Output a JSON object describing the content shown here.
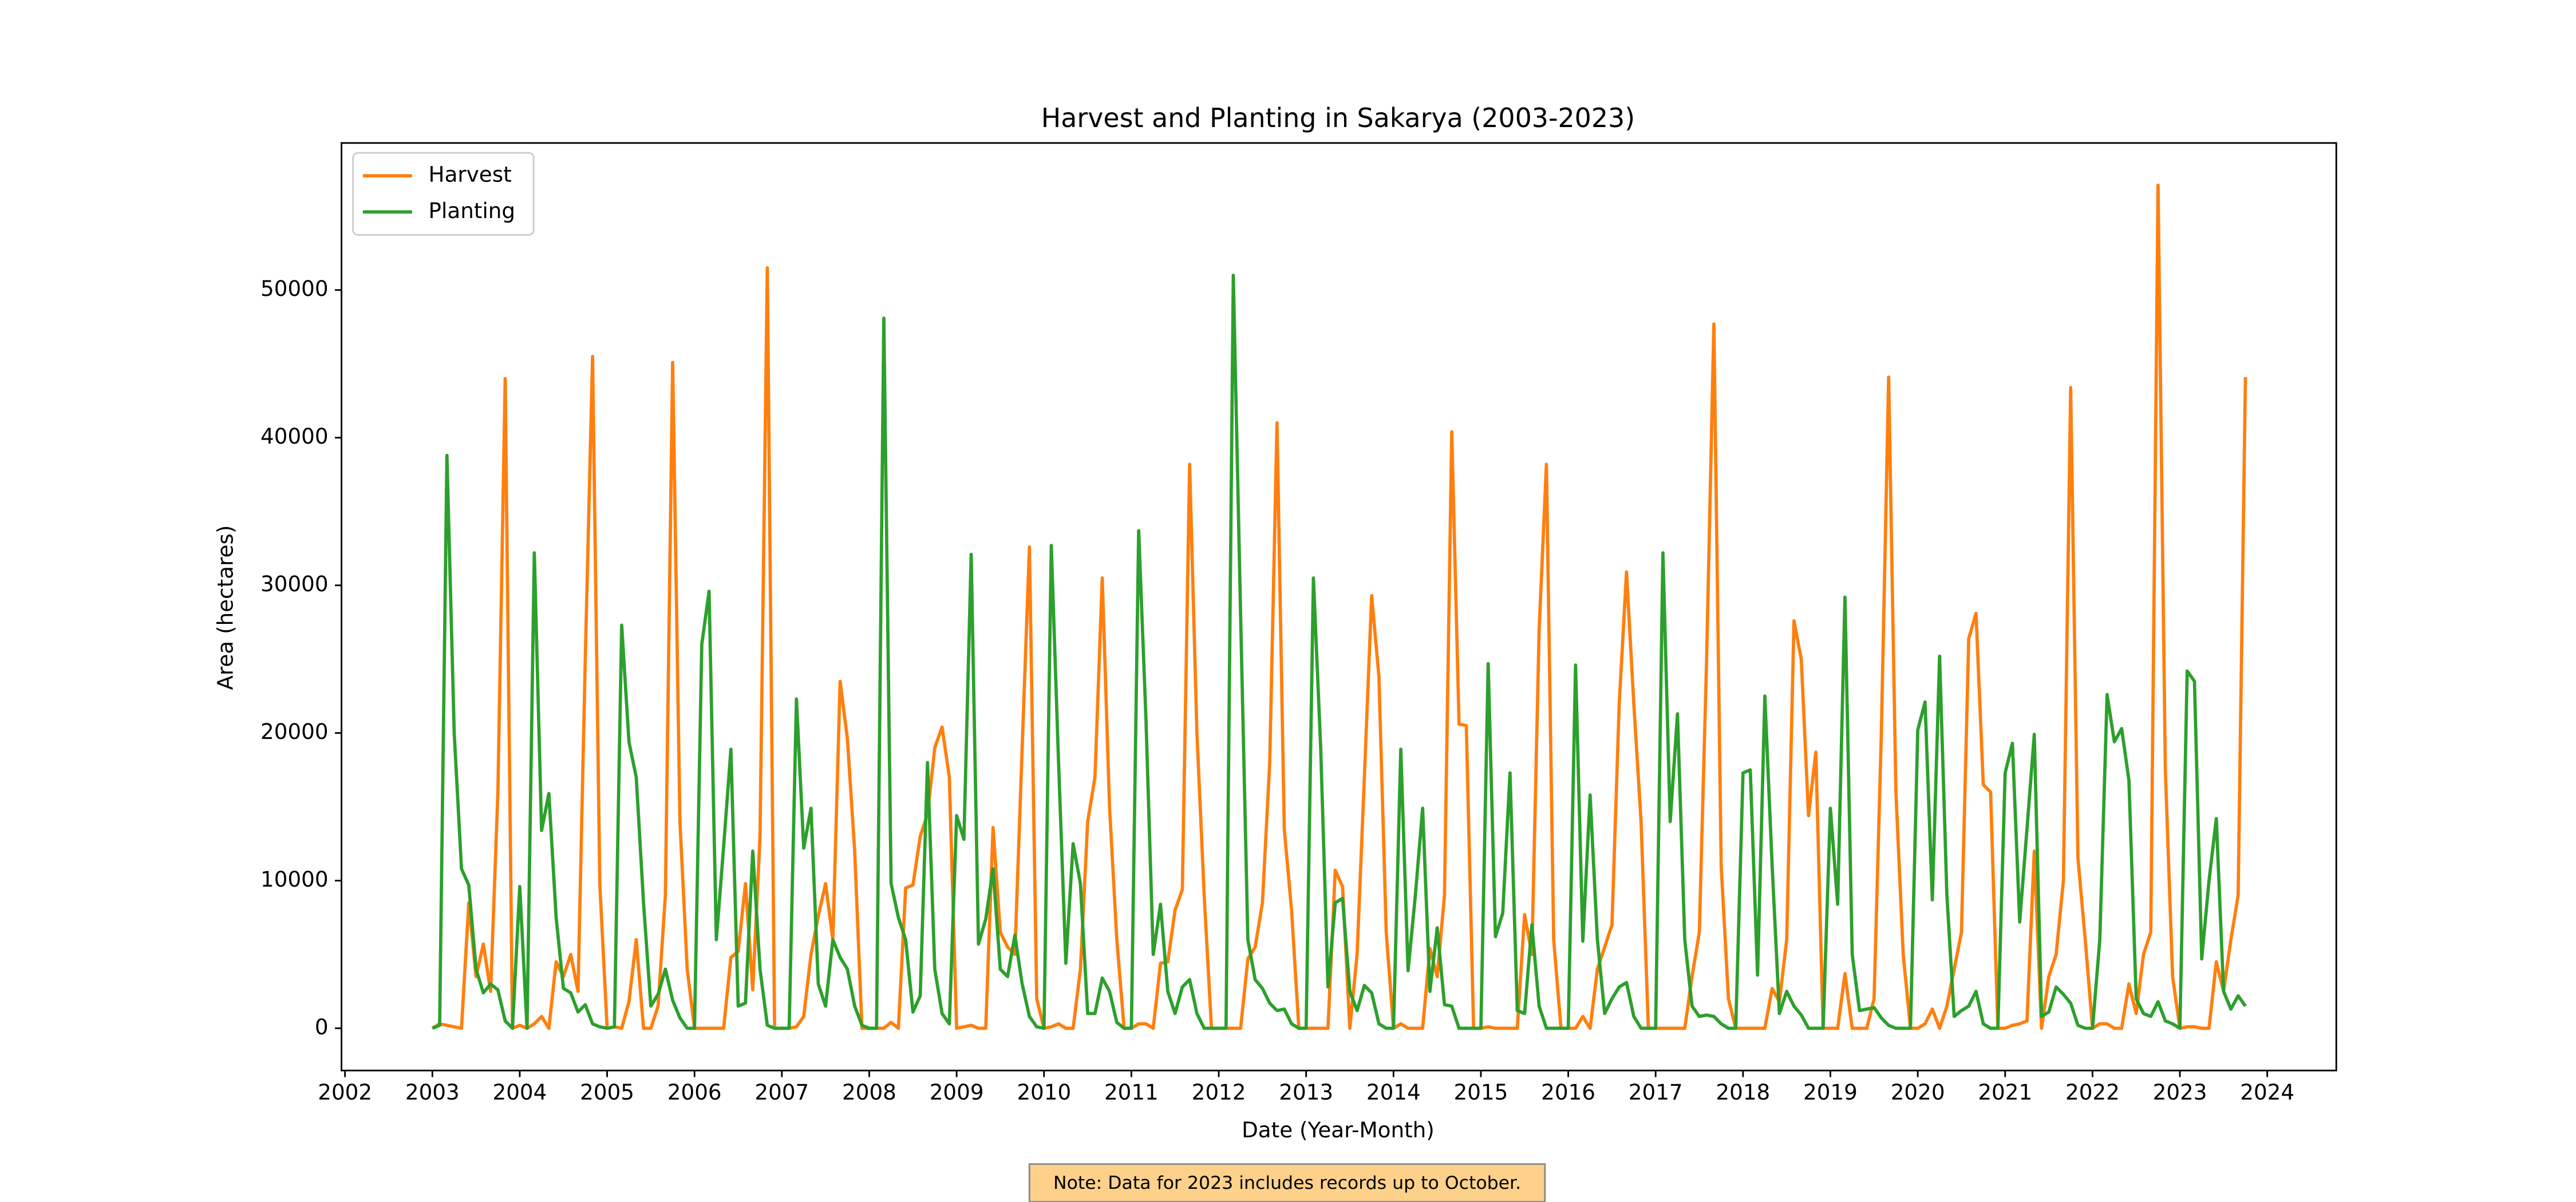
{
  "chart_data": {
    "type": "line",
    "title": "Harvest and Planting in Sakarya (2003-2023)",
    "x_label": "Date (Year-Month)",
    "y_label": "Area (hectares)",
    "note": "Note: Data for 2023 includes records up to October.",
    "legend": "upper left",
    "grid": false,
    "x": [
      "2003-01",
      "2003-02",
      "2003-03",
      "2003-04",
      "2003-05",
      "2003-06",
      "2003-07",
      "2003-08",
      "2003-09",
      "2003-10",
      "2003-11",
      "2003-12",
      "2004-01",
      "2004-02",
      "2004-03",
      "2004-04",
      "2004-05",
      "2004-06",
      "2004-07",
      "2004-08",
      "2004-09",
      "2004-10",
      "2004-11",
      "2004-12",
      "2005-01",
      "2005-02",
      "2005-03",
      "2005-04",
      "2005-05",
      "2005-06",
      "2005-07",
      "2005-08",
      "2005-09",
      "2005-10",
      "2005-11",
      "2005-12",
      "2006-01",
      "2006-02",
      "2006-03",
      "2006-04",
      "2006-05",
      "2006-06",
      "2006-07",
      "2006-08",
      "2006-09",
      "2006-10",
      "2006-11",
      "2006-12",
      "2007-01",
      "2007-02",
      "2007-03",
      "2007-04",
      "2007-05",
      "2007-06",
      "2007-07",
      "2007-08",
      "2007-09",
      "2007-10",
      "2007-11",
      "2007-12",
      "2008-01",
      "2008-02",
      "2008-03",
      "2008-04",
      "2008-05",
      "2008-06",
      "2008-07",
      "2008-08",
      "2008-09",
      "2008-10",
      "2008-11",
      "2008-12",
      "2009-01",
      "2009-02",
      "2009-03",
      "2009-04",
      "2009-05",
      "2009-06",
      "2009-07",
      "2009-08",
      "2009-09",
      "2009-10",
      "2009-11",
      "2009-12",
      "2010-01",
      "2010-02",
      "2010-03",
      "2010-04",
      "2010-05",
      "2010-06",
      "2010-07",
      "2010-08",
      "2010-09",
      "2010-10",
      "2010-11",
      "2010-12",
      "2011-01",
      "2011-02",
      "2011-03",
      "2011-04",
      "2011-05",
      "2011-06",
      "2011-07",
      "2011-08",
      "2011-09",
      "2011-10",
      "2011-11",
      "2011-12",
      "2012-01",
      "2012-02",
      "2012-03",
      "2012-04",
      "2012-05",
      "2012-06",
      "2012-07",
      "2012-08",
      "2012-09",
      "2012-10",
      "2012-11",
      "2012-12",
      "2013-01",
      "2013-02",
      "2013-03",
      "2013-04",
      "2013-05",
      "2013-06",
      "2013-07",
      "2013-08",
      "2013-09",
      "2013-10",
      "2013-11",
      "2013-12",
      "2014-01",
      "2014-02",
      "2014-03",
      "2014-04",
      "2014-05",
      "2014-06",
      "2014-07",
      "2014-08",
      "2014-09",
      "2014-10",
      "2014-11",
      "2014-12",
      "2015-01",
      "2015-02",
      "2015-03",
      "2015-04",
      "2015-05",
      "2015-06",
      "2015-07",
      "2015-08",
      "2015-09",
      "2015-10",
      "2015-11",
      "2015-12",
      "2016-01",
      "2016-02",
      "2016-03",
      "2016-04",
      "2016-05",
      "2016-06",
      "2016-07",
      "2016-08",
      "2016-09",
      "2016-10",
      "2016-11",
      "2016-12",
      "2017-01",
      "2017-02",
      "2017-03",
      "2017-04",
      "2017-05",
      "2017-06",
      "2017-07",
      "2017-08",
      "2017-09",
      "2017-10",
      "2017-11",
      "2017-12",
      "2018-01",
      "2018-02",
      "2018-03",
      "2018-04",
      "2018-05",
      "2018-06",
      "2018-07",
      "2018-08",
      "2018-09",
      "2018-10",
      "2018-11",
      "2018-12",
      "2019-01",
      "2019-02",
      "2019-03",
      "2019-04",
      "2019-05",
      "2019-06",
      "2019-07",
      "2019-08",
      "2019-09",
      "2019-10",
      "2019-11",
      "2019-12",
      "2020-01",
      "2020-02",
      "2020-03",
      "2020-04",
      "2020-05",
      "2020-06",
      "2020-07",
      "2020-08",
      "2020-09",
      "2020-10",
      "2020-11",
      "2020-12",
      "2021-01",
      "2021-02",
      "2021-03",
      "2021-04",
      "2021-05",
      "2021-06",
      "2021-07",
      "2021-08",
      "2021-09",
      "2021-10",
      "2021-11",
      "2021-12",
      "2022-01",
      "2022-02",
      "2022-03",
      "2022-04",
      "2022-05",
      "2022-06",
      "2022-07",
      "2022-08",
      "2022-09",
      "2022-10",
      "2022-11",
      "2022-12",
      "2023-01",
      "2023-02",
      "2023-03",
      "2023-04",
      "2023-05",
      "2023-06",
      "2023-07",
      "2023-08",
      "2023-09",
      "2023-10"
    ],
    "series": [
      {
        "name": "Harvest",
        "color": "#ff7f0e",
        "values": [
          0,
          300,
          200,
          100,
          0,
          8500,
          3500,
          5700,
          2500,
          16000,
          44000,
          0,
          200,
          0,
          300,
          800,
          0,
          4500,
          3500,
          5000,
          2500,
          25000,
          45500,
          9700,
          0,
          100,
          0,
          1800,
          6000,
          0,
          0,
          1500,
          9000,
          45100,
          14000,
          4000,
          0,
          0,
          0,
          0,
          0,
          4800,
          5200,
          9800,
          2600,
          13000,
          51500,
          0,
          0,
          0,
          100,
          800,
          5000,
          7600,
          9800,
          6000,
          23500,
          19600,
          12000,
          0,
          0,
          0,
          0,
          400,
          0,
          9500,
          9700,
          13000,
          14500,
          19000,
          20400,
          17000,
          0,
          100,
          200,
          0,
          0,
          13600,
          6500,
          5500,
          5000,
          19000,
          32600,
          2000,
          0,
          100,
          300,
          0,
          0,
          4000,
          14000,
          17000,
          30500,
          15000,
          6000,
          0,
          0,
          300,
          300,
          0,
          4400,
          4500,
          8000,
          9400,
          38200,
          20000,
          9000,
          0,
          0,
          0,
          0,
          0,
          4700,
          5500,
          8500,
          18000,
          41000,
          13500,
          8000,
          0,
          0,
          0,
          0,
          0,
          10700,
          9600,
          0,
          5000,
          17000,
          29300,
          23800,
          6500,
          0,
          300,
          0,
          0,
          0,
          5400,
          3500,
          9000,
          40400,
          20600,
          20500,
          0,
          0,
          100,
          0,
          0,
          0,
          0,
          7700,
          5000,
          27000,
          38200,
          6000,
          0,
          0,
          0,
          800,
          0,
          4000,
          5500,
          7000,
          22000,
          30900,
          22000,
          14000,
          0,
          0,
          0,
          0,
          0,
          0,
          3500,
          6500,
          25000,
          47700,
          11000,
          2000,
          0,
          0,
          0,
          0,
          0,
          2700,
          1800,
          6000,
          27600,
          25000,
          14400,
          18700,
          0,
          0,
          0,
          3700,
          0,
          0,
          0,
          2000,
          20000,
          44100,
          16000,
          5000,
          0,
          0,
          300,
          1300,
          0,
          1500,
          4000,
          6500,
          26400,
          28100,
          16500,
          16000,
          0,
          0,
          200,
          300,
          500,
          12000,
          0,
          3500,
          5000,
          10000,
          43400,
          11500,
          6000,
          0,
          300,
          300,
          0,
          0,
          3000,
          1000,
          5000,
          6500,
          57100,
          17500,
          3500,
          0,
          100,
          100,
          0,
          0,
          4500,
          2500,
          6000,
          9000,
          44100
        ]
      },
      {
        "name": "Planting",
        "color": "#2ca02c",
        "values": [
          0,
          200,
          38800,
          20000,
          10800,
          9700,
          4000,
          2400,
          3000,
          2600,
          500,
          0,
          9600,
          0,
          32200,
          13400,
          15900,
          7500,
          2700,
          2400,
          1100,
          1600,
          300,
          100,
          0,
          100,
          27300,
          19400,
          17000,
          8500,
          1500,
          2300,
          4000,
          1900,
          700,
          0,
          0,
          26000,
          29600,
          6000,
          12300,
          18900,
          1500,
          1700,
          12000,
          4000,
          200,
          0,
          0,
          0,
          22300,
          12200,
          14900,
          3000,
          1500,
          6000,
          4800,
          4000,
          1500,
          200,
          0,
          0,
          48100,
          9800,
          7500,
          6000,
          1100,
          2200,
          18000,
          4000,
          1000,
          300,
          14400,
          12800,
          32100,
          5700,
          7400,
          10800,
          4000,
          3500,
          6300,
          3000,
          800,
          100,
          0,
          32700,
          18000,
          4400,
          12500,
          9800,
          1000,
          1000,
          3400,
          2500,
          400,
          0,
          0,
          33700,
          21000,
          5000,
          8400,
          2500,
          1000,
          2800,
          3300,
          1000,
          0,
          0,
          0,
          0,
          51000,
          28000,
          6000,
          3300,
          2700,
          1700,
          1200,
          1300,
          300,
          0,
          0,
          30500,
          19000,
          2800,
          8500,
          8800,
          2500,
          1200,
          2900,
          2400,
          300,
          0,
          0,
          18900,
          3900,
          9000,
          14900,
          2500,
          6800,
          1600,
          1500,
          0,
          0,
          0,
          0,
          24700,
          6200,
          7800,
          17300,
          1200,
          1000,
          7000,
          1500,
          0,
          0,
          0,
          0,
          24600,
          5900,
          15800,
          6000,
          1000,
          2000,
          2800,
          3100,
          800,
          0,
          0,
          0,
          32200,
          14000,
          21300,
          6000,
          1500,
          800,
          900,
          800,
          300,
          0,
          0,
          17300,
          17500,
          3600,
          22500,
          11000,
          1000,
          2500,
          1500,
          900,
          0,
          0,
          0,
          14900,
          8400,
          29200,
          5000,
          1200,
          1300,
          1400,
          700,
          200,
          0,
          0,
          0,
          20200,
          22100,
          8700,
          25200,
          9000,
          800,
          1200,
          1500,
          2500,
          300,
          0,
          0,
          17300,
          19300,
          7200,
          13500,
          19900,
          800,
          1100,
          2800,
          2300,
          1700,
          200,
          0,
          0,
          6000,
          22600,
          19400,
          20300,
          16800,
          2000,
          1000,
          800,
          1800,
          500,
          300,
          0,
          24200,
          23500,
          4700,
          10000,
          14200,
          2500,
          1300,
          2200,
          1500
        ]
      }
    ],
    "xlim": [
      2001.96,
      2024.79
    ],
    "xticks": [
      2002,
      2003,
      2004,
      2005,
      2006,
      2007,
      2008,
      2009,
      2010,
      2011,
      2012,
      2013,
      2014,
      2015,
      2016,
      2017,
      2018,
      2019,
      2020,
      2021,
      2022,
      2023,
      2024
    ],
    "ylim": [
      -2860,
      59960
    ],
    "yticks": [
      0,
      10000,
      20000,
      30000,
      40000,
      50000
    ]
  }
}
